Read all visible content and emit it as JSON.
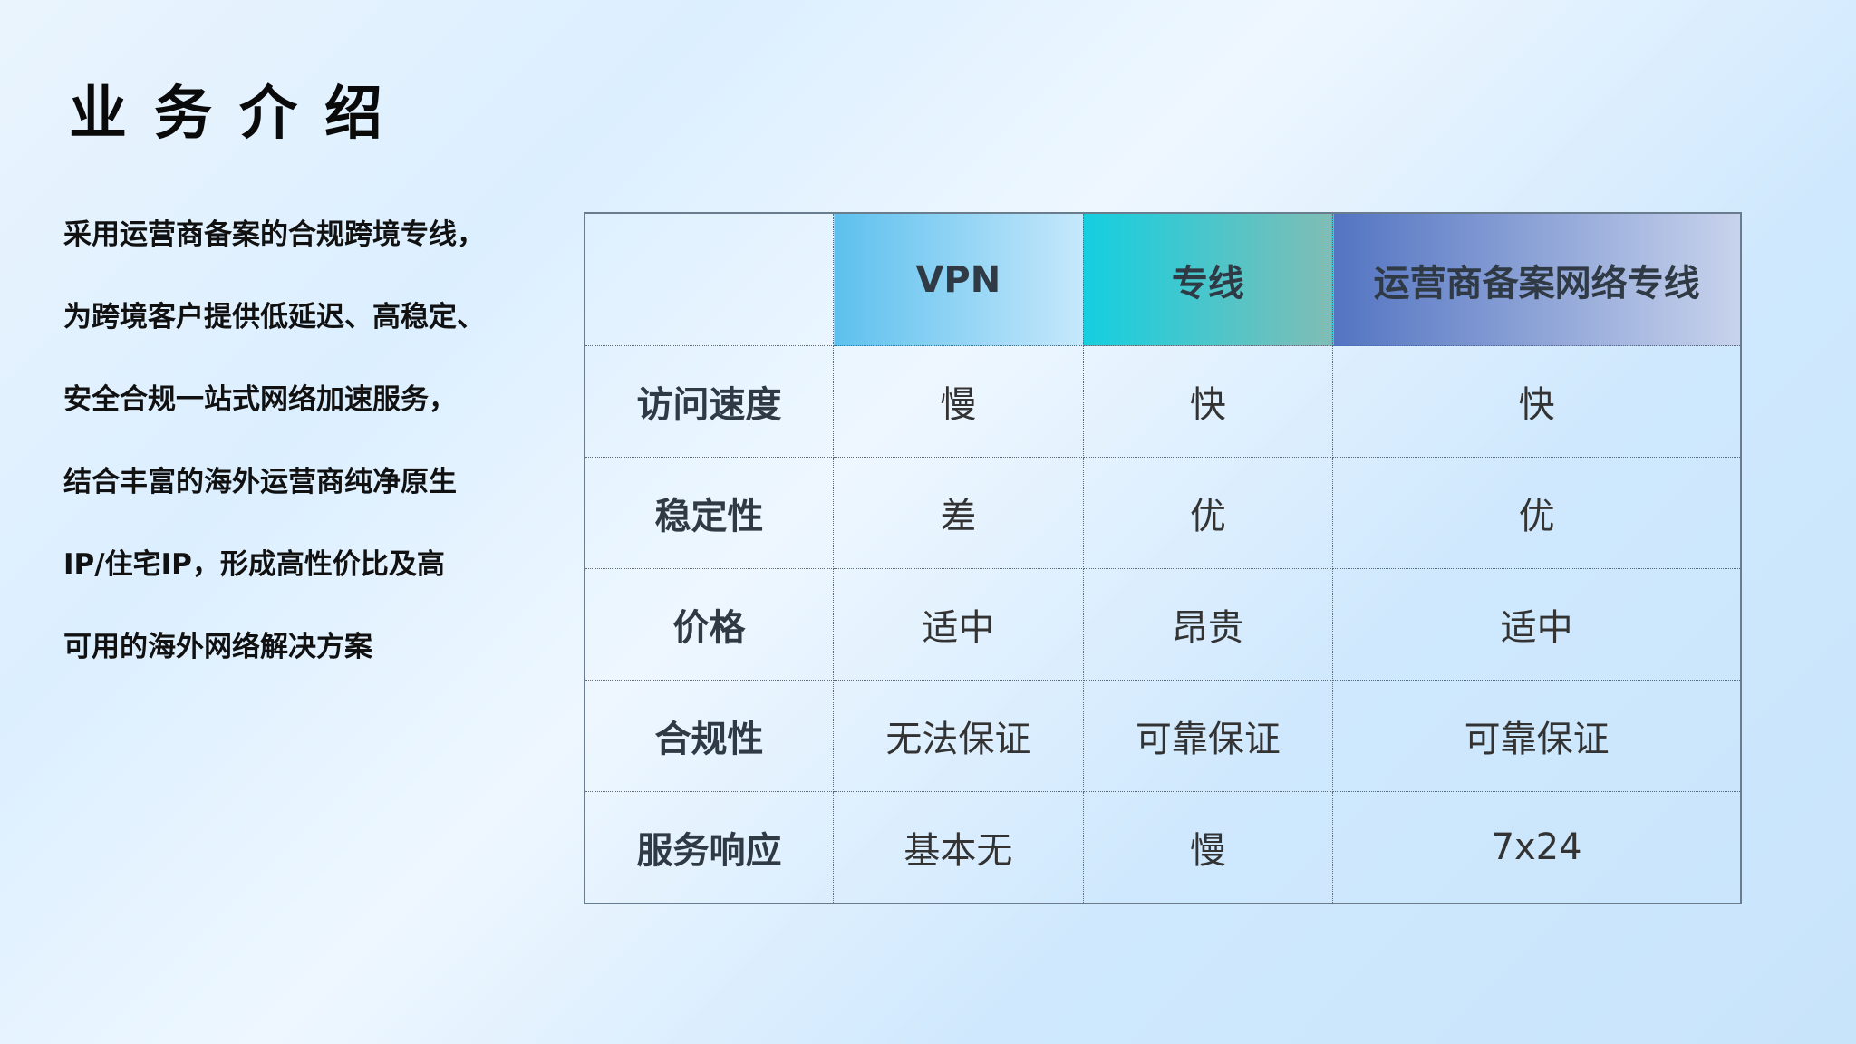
{
  "title": "业务介绍",
  "intro_lines": [
    "采用运营商备案的合规跨境专线，",
    "为跨境客户提供低延迟、高稳定、",
    "安全合规一站式网络加速服务，",
    "结合丰富的海外运营商纯净原生",
    "IP/住宅IP，形成高性价比及高",
    "可用的海外网络解决方案"
  ],
  "table": {
    "headers": [
      "",
      "VPN",
      "专线",
      "运营商备案网络专线"
    ],
    "header_colors": [
      "",
      "#5dc0ee",
      "#14cfe0",
      "#5374c2"
    ],
    "rows": [
      [
        "访问速度",
        "慢",
        "快",
        "快"
      ],
      [
        "稳定性",
        "差",
        "优",
        "优"
      ],
      [
        "价格",
        "适中",
        "昂贵",
        "适中"
      ],
      [
        "合规性",
        "无法保证",
        "可靠保证",
        "可靠保证"
      ],
      [
        "服务响应",
        "基本无",
        "慢",
        "7x24"
      ]
    ]
  }
}
